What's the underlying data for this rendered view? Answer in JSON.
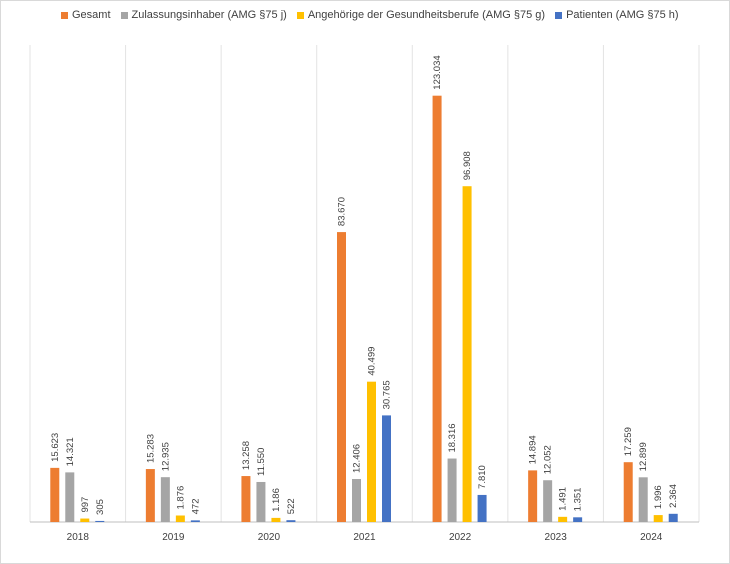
{
  "chart_data": {
    "type": "bar",
    "title": "",
    "xlabel": "",
    "ylabel": "",
    "categories": [
      "2018",
      "2019",
      "2020",
      "2021",
      "2022",
      "2023",
      "2024"
    ],
    "series": [
      {
        "name": "Gesamt",
        "color": "#ED7D31",
        "values": [
          15623,
          15283,
          13258,
          83670,
          123034,
          14894,
          17259
        ],
        "labels": [
          "15.623",
          "15.283",
          "13.258",
          "83.670",
          "123.034",
          "14.894",
          "17.259"
        ]
      },
      {
        "name": "Zulassungsinhaber (AMG §75 j)",
        "color": "#A5A5A5",
        "values": [
          14321,
          12935,
          11550,
          12406,
          18316,
          12052,
          12899
        ],
        "labels": [
          "14.321",
          "12.935",
          "11.550",
          "12.406",
          "18.316",
          "12.052",
          "12.899"
        ]
      },
      {
        "name": "Angehörige der Gesundheitsberufe (AMG §75 g)",
        "color": "#FFC000",
        "values": [
          997,
          1876,
          1186,
          40499,
          96908,
          1491,
          1996
        ],
        "labels": [
          "997",
          "1.876",
          "1.186",
          "40.499",
          "96.908",
          "1.491",
          "1.996"
        ]
      },
      {
        "name": "Patienten (AMG §75 h)",
        "color": "#4472C4",
        "values": [
          305,
          472,
          522,
          30765,
          7810,
          1351,
          2364
        ],
        "labels": [
          "305",
          "472",
          "522",
          "30.765",
          "7.810",
          "1.351",
          "2.364"
        ]
      }
    ],
    "ylim": [
      0,
      140000
    ],
    "grid": "vertical-category-separators",
    "legend_position": "top"
  }
}
